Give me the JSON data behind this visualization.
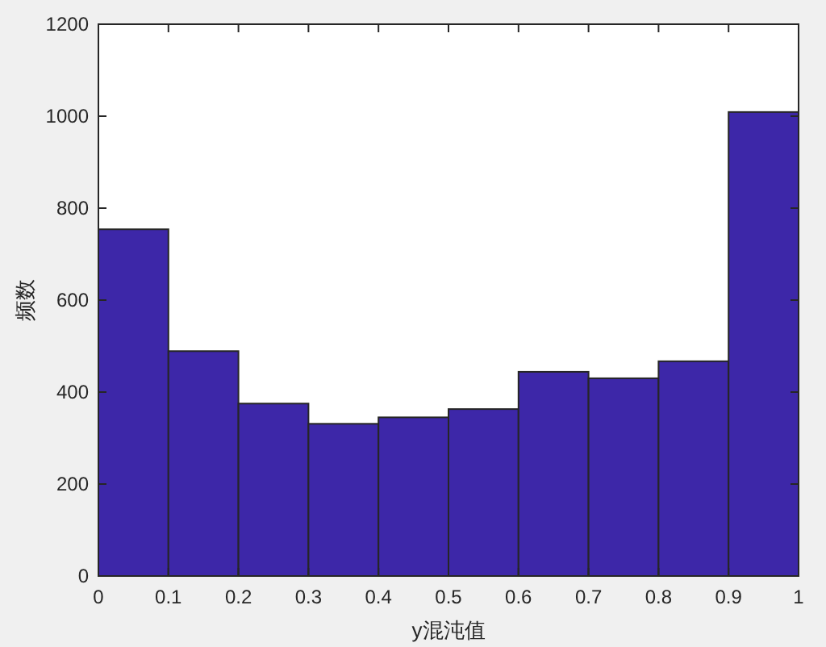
{
  "chart_data": {
    "type": "histogram",
    "xlabel": "y混沌值",
    "ylabel": "频数",
    "bins": [
      0,
      0.1,
      0.2,
      0.3,
      0.4,
      0.5,
      0.6,
      0.7,
      0.8,
      0.9,
      1
    ],
    "values": [
      754,
      489,
      375,
      331,
      345,
      363,
      444,
      430,
      467,
      1009
    ],
    "color": "#3d27a8",
    "xlim": [
      0,
      1
    ],
    "xticks": [
      0,
      0.1,
      0.2,
      0.3,
      0.4,
      0.5,
      0.6,
      0.7,
      0.8,
      0.9,
      1
    ],
    "ylim": [
      0,
      1200
    ],
    "yticks": [
      0,
      200,
      400,
      600,
      800,
      1000,
      1200
    ],
    "grid": false
  }
}
